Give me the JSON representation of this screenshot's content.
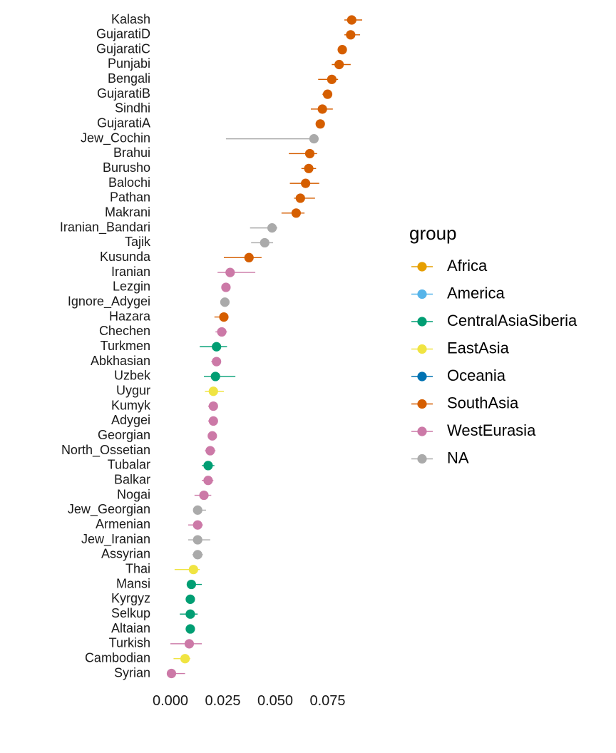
{
  "chart_data": {
    "type": "scatter",
    "title": "",
    "xlabel": "",
    "ylabel": "",
    "xlim": [
      -0.002,
      0.091
    ],
    "x_ticks": [
      "0.000",
      "0.025",
      "0.050",
      "0.075"
    ],
    "x_tick_values": [
      0,
      0.025,
      0.05,
      0.075
    ],
    "grid": false,
    "legend": {
      "title": "group",
      "placement": "right",
      "entries": [
        {
          "name": "Africa",
          "color": "#E69F00"
        },
        {
          "name": "America",
          "color": "#56B4E9"
        },
        {
          "name": "CentralAsiaSiberia",
          "color": "#009E73"
        },
        {
          "name": "EastAsia",
          "color": "#F0E442"
        },
        {
          "name": "Oceania",
          "color": "#0072B2"
        },
        {
          "name": "SouthAsia",
          "color": "#D55E00"
        },
        {
          "name": "WestEurasia",
          "color": "#CC79A7"
        },
        {
          "name": "NA",
          "color": "#AAAAAA"
        }
      ]
    },
    "points": [
      {
        "label": "Kalash",
        "value": 0.0865,
        "lo": 0.083,
        "hi": 0.0915,
        "group": "SouthAsia"
      },
      {
        "label": "GujaratiD",
        "value": 0.086,
        "lo": 0.083,
        "hi": 0.0905,
        "group": "SouthAsia"
      },
      {
        "label": "GujaratiC",
        "value": 0.082,
        "lo": 0.08,
        "hi": 0.084,
        "group": "SouthAsia"
      },
      {
        "label": "Punjabi",
        "value": 0.0805,
        "lo": 0.077,
        "hi": 0.086,
        "group": "SouthAsia"
      },
      {
        "label": "Bengali",
        "value": 0.077,
        "lo": 0.0705,
        "hi": 0.08,
        "group": "SouthAsia"
      },
      {
        "label": "GujaratiB",
        "value": 0.075,
        "lo": 0.0725,
        "hi": 0.077,
        "group": "SouthAsia"
      },
      {
        "label": "Sindhi",
        "value": 0.0725,
        "lo": 0.067,
        "hi": 0.0775,
        "group": "SouthAsia"
      },
      {
        "label": "GujaratiA",
        "value": 0.0715,
        "lo": 0.0705,
        "hi": 0.073,
        "group": "SouthAsia"
      },
      {
        "label": "Jew_Cochin",
        "value": 0.0685,
        "lo": 0.0265,
        "hi": 0.07,
        "group": "NA"
      },
      {
        "label": "Brahui",
        "value": 0.0665,
        "lo": 0.0565,
        "hi": 0.07,
        "group": "SouthAsia"
      },
      {
        "label": "Burusho",
        "value": 0.066,
        "lo": 0.0625,
        "hi": 0.0695,
        "group": "SouthAsia"
      },
      {
        "label": "Balochi",
        "value": 0.0645,
        "lo": 0.057,
        "hi": 0.071,
        "group": "SouthAsia"
      },
      {
        "label": "Pathan",
        "value": 0.062,
        "lo": 0.059,
        "hi": 0.069,
        "group": "SouthAsia"
      },
      {
        "label": "Makrani",
        "value": 0.06,
        "lo": 0.053,
        "hi": 0.064,
        "group": "SouthAsia"
      },
      {
        "label": "Iranian_Bandari",
        "value": 0.0485,
        "lo": 0.038,
        "hi": 0.051,
        "group": "NA"
      },
      {
        "label": "Tajik",
        "value": 0.045,
        "lo": 0.0385,
        "hi": 0.049,
        "group": "NA"
      },
      {
        "label": "Kusunda",
        "value": 0.0375,
        "lo": 0.0255,
        "hi": 0.0435,
        "group": "SouthAsia"
      },
      {
        "label": "Iranian",
        "value": 0.0285,
        "lo": 0.0225,
        "hi": 0.0405,
        "group": "WestEurasia"
      },
      {
        "label": "Lezgin",
        "value": 0.0265,
        "lo": 0.025,
        "hi": 0.0285,
        "group": "WestEurasia"
      },
      {
        "label": "Ignore_Adygei",
        "value": 0.026,
        "lo": 0.025,
        "hi": 0.027,
        "group": "NA"
      },
      {
        "label": "Hazara",
        "value": 0.0255,
        "lo": 0.021,
        "hi": 0.0275,
        "group": "SouthAsia"
      },
      {
        "label": "Chechen",
        "value": 0.0245,
        "lo": 0.0215,
        "hi": 0.027,
        "group": "WestEurasia"
      },
      {
        "label": "Turkmen",
        "value": 0.022,
        "lo": 0.014,
        "hi": 0.027,
        "group": "CentralAsiaSiberia"
      },
      {
        "label": "Abkhasian",
        "value": 0.022,
        "lo": 0.0195,
        "hi": 0.024,
        "group": "WestEurasia"
      },
      {
        "label": "Uzbek",
        "value": 0.0215,
        "lo": 0.016,
        "hi": 0.031,
        "group": "CentralAsiaSiberia"
      },
      {
        "label": "Uygur",
        "value": 0.0205,
        "lo": 0.0165,
        "hi": 0.0255,
        "group": "EastAsia"
      },
      {
        "label": "Kumyk",
        "value": 0.0205,
        "lo": 0.018,
        "hi": 0.0225,
        "group": "WestEurasia"
      },
      {
        "label": "Adygei",
        "value": 0.0205,
        "lo": 0.018,
        "hi": 0.0225,
        "group": "WestEurasia"
      },
      {
        "label": "Georgian",
        "value": 0.02,
        "lo": 0.0185,
        "hi": 0.0215,
        "group": "WestEurasia"
      },
      {
        "label": "North_Ossetian",
        "value": 0.019,
        "lo": 0.0165,
        "hi": 0.0215,
        "group": "WestEurasia"
      },
      {
        "label": "Tubalar",
        "value": 0.018,
        "lo": 0.015,
        "hi": 0.021,
        "group": "CentralAsiaSiberia"
      },
      {
        "label": "Balkar",
        "value": 0.018,
        "lo": 0.015,
        "hi": 0.0205,
        "group": "WestEurasia"
      },
      {
        "label": "Nogai",
        "value": 0.016,
        "lo": 0.0115,
        "hi": 0.0195,
        "group": "WestEurasia"
      },
      {
        "label": "Jew_Georgian",
        "value": 0.013,
        "lo": 0.0115,
        "hi": 0.017,
        "group": "NA"
      },
      {
        "label": "Armenian",
        "value": 0.013,
        "lo": 0.0085,
        "hi": 0.0155,
        "group": "WestEurasia"
      },
      {
        "label": "Jew_Iranian",
        "value": 0.013,
        "lo": 0.0085,
        "hi": 0.019,
        "group": "NA"
      },
      {
        "label": "Assyrian",
        "value": 0.013,
        "lo": 0.0105,
        "hi": 0.0155,
        "group": "NA"
      },
      {
        "label": "Thai",
        "value": 0.011,
        "lo": 0.002,
        "hi": 0.014,
        "group": "EastAsia"
      },
      {
        "label": "Mansi",
        "value": 0.01,
        "lo": 0.008,
        "hi": 0.015,
        "group": "CentralAsiaSiberia"
      },
      {
        "label": "Kyrgyz",
        "value": 0.0095,
        "lo": 0.0085,
        "hi": 0.0105,
        "group": "CentralAsiaSiberia"
      },
      {
        "label": "Selkup",
        "value": 0.0095,
        "lo": 0.0045,
        "hi": 0.013,
        "group": "CentralAsiaSiberia"
      },
      {
        "label": "Altaian",
        "value": 0.0095,
        "lo": 0.0085,
        "hi": 0.0105,
        "group": "CentralAsiaSiberia"
      },
      {
        "label": "Turkish",
        "value": 0.009,
        "lo": 0.0,
        "hi": 0.015,
        "group": "WestEurasia"
      },
      {
        "label": "Cambodian",
        "value": 0.007,
        "lo": 0.0015,
        "hi": 0.0095,
        "group": "EastAsia"
      },
      {
        "label": "Syrian",
        "value": 0.0005,
        "lo": 0.0,
        "hi": 0.007,
        "group": "WestEurasia"
      }
    ]
  }
}
